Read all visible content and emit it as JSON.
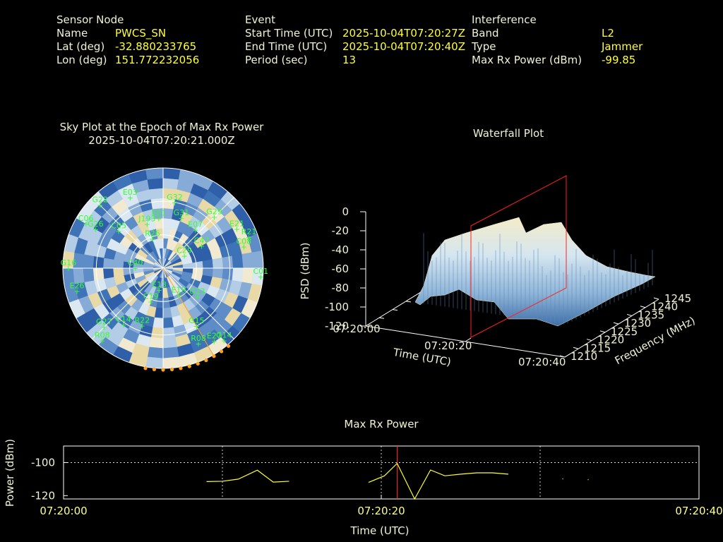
{
  "header": {
    "sensor": {
      "title": "Sensor Node",
      "name_label": "Name",
      "name": "PWCS_SN",
      "lat_label": "Lat (deg)",
      "lat": "-32.880233765",
      "lon_label": "Lon (deg)",
      "lon": "151.772232056"
    },
    "event": {
      "title": "Event",
      "start_label": "Start Time (UTC)",
      "start": "2025-10-04T07:20:27Z",
      "end_label": "End Time (UTC)",
      "end": "2025-10-04T07:20:40Z",
      "period_label": "Period (sec)",
      "period": "13"
    },
    "interference": {
      "title": "Interference",
      "band_label": "Band",
      "band": "L2",
      "type_label": "Type",
      "type": "Jammer",
      "max_label": "Max Rx Power (dBm)",
      "max": "-99.85"
    }
  },
  "colors": {
    "text": "#f2f2d2",
    "value": "#ffff33",
    "sat": "#33ff33",
    "marker": "#ff2020",
    "trace": "#ffff33",
    "jam": "#ffa020"
  },
  "chart_data": [
    {
      "type": "scatter",
      "title": "Sky Plot at the Epoch of Max Rx Power",
      "subtitle": "2025-10-04T07:20:21.000Z",
      "satellites": [
        {
          "id": "G32",
          "az": 10,
          "el": 30
        },
        {
          "id": "E03",
          "az": 335,
          "el": 20
        },
        {
          "id": "G22",
          "az": 315,
          "el": 10
        },
        {
          "id": "G29",
          "az": 45,
          "el": 25
        },
        {
          "id": "E21",
          "az": 62,
          "el": 15
        },
        {
          "id": "C08",
          "az": 75,
          "el": 15
        },
        {
          "id": "R21",
          "az": 70,
          "el": 8
        },
        {
          "id": "G26",
          "az": 300,
          "el": 20
        },
        {
          "id": "C05",
          "az": 310,
          "el": 38
        },
        {
          "id": "C01",
          "az": 95,
          "el": 2
        },
        {
          "id": "J193",
          "az": 340,
          "el": 48
        },
        {
          "id": "E01",
          "az": 355,
          "el": 45
        },
        {
          "id": "E07",
          "az": 40,
          "el": 45
        },
        {
          "id": "G31",
          "az": 20,
          "el": 42
        },
        {
          "id": "C47",
          "az": 60,
          "el": 50
        },
        {
          "id": "C06",
          "az": 300,
          "el": 10
        },
        {
          "id": "E26",
          "az": 255,
          "el": 10
        },
        {
          "id": "R26",
          "az": 340,
          "el": 62
        },
        {
          "id": "C29",
          "az": 60,
          "el": 68
        },
        {
          "id": "G16",
          "az": 270,
          "el": 5
        },
        {
          "id": "C40",
          "az": 270,
          "el": 65
        },
        {
          "id": "C19",
          "az": 200,
          "el": 58
        },
        {
          "id": "E19",
          "az": 150,
          "el": 62
        },
        {
          "id": "E13",
          "az": 190,
          "el": 70
        },
        {
          "id": "G23",
          "az": 130,
          "el": 50
        },
        {
          "id": "R22",
          "az": 200,
          "el": 35
        },
        {
          "id": "C14",
          "az": 215,
          "el": 28
        },
        {
          "id": "G27",
          "az": 225,
          "el": 15
        },
        {
          "id": "G15",
          "az": 150,
          "el": 30
        },
        {
          "id": "E27",
          "az": 145,
          "el": 10
        },
        {
          "id": "R08",
          "az": 155,
          "el": 15
        },
        {
          "id": "G14",
          "az": 140,
          "el": 5
        },
        {
          "id": "R08b",
          "az": 220,
          "el": 5
        }
      ],
      "jammer_directions_deg": [
        140,
        145,
        150,
        155,
        160,
        165,
        170,
        175,
        180,
        185,
        190
      ]
    },
    {
      "type": "area",
      "title": "Waterfall Plot",
      "xlabel": "Time (UTC)",
      "ylabel": "Frequency (MHz)",
      "zlabel": "PSD (dBm)",
      "x_ticks": [
        "07:20:00",
        "07:20:20",
        "07:20:40"
      ],
      "y_ticks": [
        "1210",
        "1215",
        "1220",
        "1225",
        "1230",
        "1235",
        "1240",
        "1245"
      ],
      "z_ticks": [
        "0",
        "-20",
        "-40",
        "-60",
        "-80",
        "-100",
        "-120"
      ],
      "zlim": [
        -120,
        0
      ],
      "marker_time": "07:20:21"
    },
    {
      "type": "line",
      "title": "Max Rx Power",
      "xlabel": "Time (UTC)",
      "ylabel": "Power (dBm)",
      "x_ticks": [
        "07:20:00",
        "07:20:20",
        "07:20:40"
      ],
      "y_ticks": [
        "-100",
        "-120"
      ],
      "xlim": [
        0,
        40
      ],
      "ylim": [
        -122,
        -90
      ],
      "grid": "dotted",
      "marker_time_sec": 21,
      "segments": [
        [
          [
            9,
            -111.5
          ],
          [
            10,
            -111.3
          ],
          [
            11,
            -110
          ],
          [
            12.2,
            -104.6
          ],
          [
            13.2,
            -111.8
          ],
          [
            14.2,
            -111.3
          ]
        ],
        [
          [
            19.2,
            -112
          ],
          [
            20.2,
            -108
          ],
          [
            21,
            -100.5
          ],
          [
            22.1,
            -123
          ],
          [
            23.1,
            -104.5
          ],
          [
            24,
            -108
          ],
          [
            25,
            -107
          ],
          [
            26,
            -106.2
          ],
          [
            27,
            -106.2
          ],
          [
            28,
            -107
          ]
        ],
        [
          [
            31.4,
            -109.8
          ],
          [
            31.45,
            -109.9
          ]
        ],
        [
          [
            33,
            -110.3
          ],
          [
            33.05,
            -110.4
          ]
        ]
      ]
    }
  ]
}
